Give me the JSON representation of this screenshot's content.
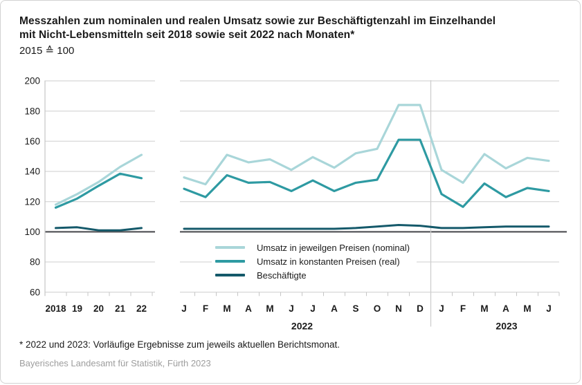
{
  "header": {
    "title_line1": "Messzahlen zum nominalen und realen Umsatz sowie zur Beschäftigtenzahl im Einzelhandel",
    "title_line2": "mit Nicht-Lebensmitteln seit 2018 sowie seit 2022 nach Monaten*",
    "subtitle": "2015 ≙ 100"
  },
  "chart_data": {
    "type": "line",
    "title": "Messzahlen zum nominalen und realen Umsatz sowie zur Beschäftigtenzahl im Einzelhandel mit Nicht-Lebensmitteln seit 2018 sowie seit 2022 nach Monaten*",
    "subtitle": "2015 ≙ 100",
    "ylim": [
      60,
      200
    ],
    "yticks": [
      200,
      180,
      160,
      140,
      120,
      100,
      80,
      60
    ],
    "baseline_value": 100,
    "grid": true,
    "legend_position": "inside-bottom-center",
    "panels": [
      {
        "name": "annual",
        "categories": [
          "2018",
          "19",
          "20",
          "21",
          "22"
        ],
        "series": [
          {
            "name": "Umsatz in jeweilgen Preisen (nominal)",
            "values": [
              118,
              125,
              133,
              143,
              151
            ]
          },
          {
            "name": "Umsatz in konstanten Preisen (real)",
            "values": [
              116,
              122,
              130.5,
              138.5,
              135.5
            ]
          },
          {
            "name": "Beschäftigte",
            "values": [
              102.5,
              103,
              101,
              101,
              102.5
            ]
          }
        ]
      },
      {
        "name": "monthly",
        "categories": [
          "J",
          "F",
          "M",
          "A",
          "M",
          "J",
          "J",
          "A",
          "S",
          "O",
          "N",
          "D",
          "J",
          "F",
          "M",
          "A",
          "M",
          "J"
        ],
        "group_labels": [
          {
            "label": "2022",
            "span": [
              0,
              11
            ]
          },
          {
            "label": "2023",
            "span": [
              12,
              17
            ]
          }
        ],
        "divider_after_index": 11,
        "series": [
          {
            "name": "Umsatz in jeweilgen Preisen (nominal)",
            "values": [
              136,
              131.5,
              151,
              146,
              148,
              141,
              149.5,
              142.5,
              152,
              155,
              184,
              184,
              141,
              132.5,
              151.5,
              142,
              149,
              147
            ]
          },
          {
            "name": "Umsatz in konstanten Preisen (real)",
            "values": [
              128.5,
              123,
              137.5,
              132.5,
              133,
              127,
              134,
              127,
              132.5,
              134.5,
              161,
              161,
              125,
              116.5,
              132,
              123,
              129,
              127
            ]
          },
          {
            "name": "Beschäftigte",
            "values": [
              102,
              102,
              102,
              102,
              102,
              102,
              102,
              102,
              102.5,
              103.5,
              104.5,
              104,
              102.5,
              102.5,
              103,
              103.5,
              103.5,
              103.5
            ]
          }
        ]
      }
    ],
    "legend": [
      {
        "label": "Umsatz in jeweilgen Preisen (nominal)",
        "color": "#a9d6d9"
      },
      {
        "label": "Umsatz in konstanten Preisen (real)",
        "color": "#2e9aa2"
      },
      {
        "label": "Beschäftigte",
        "color": "#14596a"
      }
    ]
  },
  "footer": {
    "footnote": "* 2022 und 2023: Vorläufige Ergebnisse zum jeweils aktuellen Berichtsmonat.",
    "source": "Bayerisches Landesamt für Statistik, Fürth 2023"
  },
  "colors": {
    "grid": "#cdcdcd",
    "axis": "#c5c5c5",
    "baseline": "#55565a",
    "text": "#1a1a1a",
    "source_text": "#9d9d9d"
  }
}
